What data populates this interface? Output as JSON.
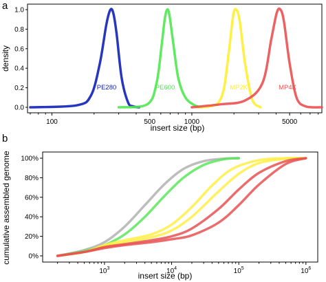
{
  "chart_data": [
    {
      "panel_label": "a",
      "type": "line",
      "xlabel": "insert size (bp)",
      "ylabel": "density",
      "x_scale": "log",
      "xlim": [
        70,
        8500
      ],
      "ylim": [
        0,
        1.0
      ],
      "xticks": [
        100,
        500,
        1000,
        5000
      ],
      "xtick_labels": [
        "100",
        "500",
        "1000",
        "5000"
      ],
      "yticks": [
        0,
        0.2,
        0.4,
        0.6,
        0.8,
        1.0
      ],
      "ytick_labels": [
        "0.0",
        "0.2",
        "0.4",
        "0.6",
        "0.8",
        "1.0"
      ],
      "grid": false,
      "series": [
        {
          "name": "PE280",
          "color": "#1020b8",
          "x": [
            70,
            150,
            190,
            220,
            245,
            262,
            275,
            290,
            315,
            350,
            380,
            420
          ],
          "y": [
            0.0,
            0.02,
            0.12,
            0.45,
            0.85,
            1.0,
            0.96,
            0.75,
            0.3,
            0.05,
            0.01,
            0.0
          ]
        },
        {
          "name": "PE600",
          "color": "#4ee84e",
          "x": [
            300,
            480,
            560,
            610,
            640,
            665,
            690,
            730,
            800,
            900,
            1050,
            1180
          ],
          "y": [
            0.0,
            0.03,
            0.25,
            0.65,
            0.9,
            1.0,
            0.95,
            0.7,
            0.3,
            0.1,
            0.02,
            0.0
          ]
        },
        {
          "name": "MP2K",
          "color": "#ffee2e",
          "x": [
            1100,
            1350,
            1550,
            1700,
            1850,
            1980,
            2080,
            2200,
            2400,
            2700,
            3100
          ],
          "y": [
            0.0,
            0.01,
            0.05,
            0.2,
            0.6,
            0.95,
            1.0,
            0.88,
            0.45,
            0.08,
            0.0
          ]
        },
        {
          "name": "MP4K",
          "color": "#ea5050",
          "x": [
            1000,
            1600,
            2400,
            3200,
            3700,
            4050,
            4300,
            4550,
            5000,
            5600,
            6500,
            8500
          ],
          "y": [
            0.0,
            0.03,
            0.07,
            0.25,
            0.7,
            0.97,
            1.0,
            0.88,
            0.45,
            0.1,
            0.01,
            0.0
          ]
        }
      ]
    },
    {
      "panel_label": "b",
      "type": "line",
      "xlabel": "insert size (bp)",
      "ylabel": "cumulative assembled genome",
      "x_scale": "log",
      "xlim": [
        120,
        1500000
      ],
      "ylim": [
        0,
        100
      ],
      "xticks": [
        1000,
        10000,
        100000,
        1000000
      ],
      "xtick_labels": [
        {
          "base": "10",
          "exp": "3"
        },
        {
          "base": "10",
          "exp": "4"
        },
        {
          "base": "10",
          "exp": "5"
        },
        {
          "base": "10",
          "exp": "6"
        }
      ],
      "yticks": [
        0,
        20,
        40,
        60,
        80,
        100
      ],
      "ytick_labels": [
        "0%",
        "20%",
        "40%",
        "60%",
        "80%",
        "100%"
      ],
      "grid": false,
      "series": [
        {
          "color": "#b2b2b2",
          "x": [
            200,
            500,
            1000,
            2000,
            4000,
            8000,
            15000,
            30000,
            60000,
            100000
          ],
          "y": [
            0,
            6,
            14,
            30,
            52,
            74,
            89,
            97,
            99.5,
            100
          ]
        },
        {
          "color": "#5ae85a",
          "x": [
            200,
            500,
            1000,
            2000,
            4000,
            8000,
            15000,
            30000,
            60000,
            100000
          ],
          "y": [
            0,
            5,
            11,
            22,
            40,
            62,
            80,
            93,
            99,
            100
          ]
        },
        {
          "color": "#ffee44",
          "x": [
            200,
            500,
            1000,
            2000,
            5000,
            10000,
            20000,
            40000,
            80000,
            200000,
            500000,
            1000000
          ],
          "y": [
            0,
            4,
            11,
            16,
            22,
            32,
            50,
            72,
            89,
            98,
            100,
            100
          ]
        },
        {
          "color": "#ffee44",
          "x": [
            200,
            500,
            1000,
            2000,
            5000,
            10000,
            20000,
            50000,
            100000,
            200000,
            500000,
            1000000
          ],
          "y": [
            0,
            4,
            10,
            14,
            19,
            26,
            40,
            66,
            84,
            95,
            99.5,
            100
          ]
        },
        {
          "color": "#e85252",
          "x": [
            200,
            500,
            1000,
            2000,
            5000,
            10000,
            20000,
            50000,
            100000,
            200000,
            500000,
            1000000
          ],
          "y": [
            0,
            4,
            9,
            12,
            16,
            20,
            28,
            48,
            68,
            85,
            97,
            100
          ]
        },
        {
          "color": "#e85252",
          "x": [
            200,
            500,
            1000,
            2000,
            5000,
            10000,
            20000,
            50000,
            100000,
            200000,
            500000,
            1000000
          ],
          "y": [
            0,
            4,
            8,
            11,
            14,
            17,
            21,
            34,
            52,
            73,
            94,
            100
          ]
        }
      ]
    }
  ]
}
